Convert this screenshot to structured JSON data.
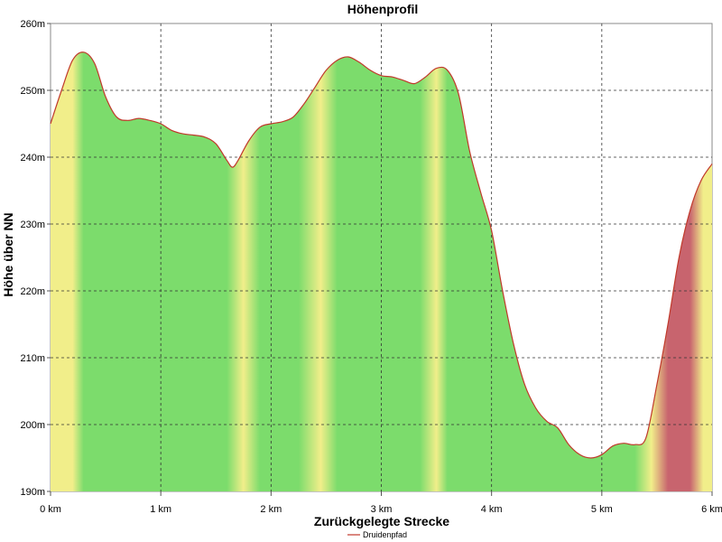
{
  "chart_data": {
    "type": "area",
    "title": "Höhenprofil",
    "xlabel": "Zurückgelegte Strecke",
    "ylabel": "Höhe über NN",
    "xlim": [
      0,
      6
    ],
    "ylim": [
      190,
      260
    ],
    "x_ticks": [
      0,
      1,
      2,
      3,
      4,
      5,
      6
    ],
    "x_tick_labels": [
      "0 km",
      "1 km",
      "2 km",
      "3 km",
      "4 km",
      "5 km",
      "6 km"
    ],
    "y_ticks": [
      190,
      200,
      210,
      220,
      230,
      240,
      250,
      260
    ],
    "y_tick_labels": [
      "190m",
      "200m",
      "210m",
      "220m",
      "230m",
      "240m",
      "250m",
      "260m"
    ],
    "grid": true,
    "legend_position": "bottom-center",
    "colors": {
      "line": "#c0392b",
      "flat": "#7cdc6c",
      "moderate": "#f1ee8a",
      "steep": "#c8646e"
    },
    "series": [
      {
        "name": "Druidenpfad",
        "x": [
          0,
          0.1,
          0.2,
          0.3,
          0.4,
          0.5,
          0.6,
          0.7,
          0.8,
          0.9,
          1.0,
          1.1,
          1.2,
          1.3,
          1.4,
          1.5,
          1.6,
          1.65,
          1.7,
          1.8,
          1.9,
          2.0,
          2.1,
          2.2,
          2.3,
          2.4,
          2.5,
          2.6,
          2.7,
          2.8,
          2.9,
          3.0,
          3.1,
          3.2,
          3.3,
          3.4,
          3.5,
          3.6,
          3.7,
          3.8,
          3.9,
          4.0,
          4.1,
          4.2,
          4.3,
          4.4,
          4.5,
          4.6,
          4.7,
          4.8,
          4.9,
          5.0,
          5.1,
          5.2,
          5.3,
          5.4,
          5.5,
          5.6,
          5.7,
          5.8,
          5.9,
          6.0
        ],
        "y": [
          245,
          250,
          254.5,
          255.7,
          254,
          249,
          246,
          245.5,
          245.8,
          245.5,
          245,
          244,
          243.5,
          243.3,
          243,
          242,
          239.5,
          238.5,
          239.5,
          242.5,
          244.5,
          245,
          245.3,
          246,
          248,
          250.5,
          253,
          254.5,
          255,
          254.2,
          253,
          252.2,
          252,
          251.5,
          251,
          252,
          253.3,
          253,
          249.5,
          241,
          234.8,
          229,
          220,
          212,
          206,
          202.5,
          200.5,
          199.5,
          197,
          195.5,
          195,
          195.5,
          196.8,
          197.2,
          197,
          198,
          206,
          215,
          225,
          232,
          236.5,
          239
        ]
      }
    ],
    "gradient_bands": [
      {
        "x": 0.0,
        "level": "moderate"
      },
      {
        "x": 0.2,
        "level": "moderate"
      },
      {
        "x": 0.3,
        "level": "flat"
      },
      {
        "x": 1.6,
        "level": "flat"
      },
      {
        "x": 1.75,
        "level": "moderate"
      },
      {
        "x": 1.9,
        "level": "flat"
      },
      {
        "x": 2.25,
        "level": "flat"
      },
      {
        "x": 2.45,
        "level": "moderate"
      },
      {
        "x": 2.6,
        "level": "flat"
      },
      {
        "x": 3.35,
        "level": "flat"
      },
      {
        "x": 3.5,
        "level": "moderate"
      },
      {
        "x": 3.6,
        "level": "flat"
      },
      {
        "x": 4.0,
        "level": "flat"
      },
      {
        "x": 5.3,
        "level": "flat"
      },
      {
        "x": 5.45,
        "level": "moderate"
      },
      {
        "x": 5.6,
        "level": "steep"
      },
      {
        "x": 5.8,
        "level": "steep"
      },
      {
        "x": 5.92,
        "level": "moderate"
      },
      {
        "x": 6.0,
        "level": "moderate"
      }
    ]
  }
}
